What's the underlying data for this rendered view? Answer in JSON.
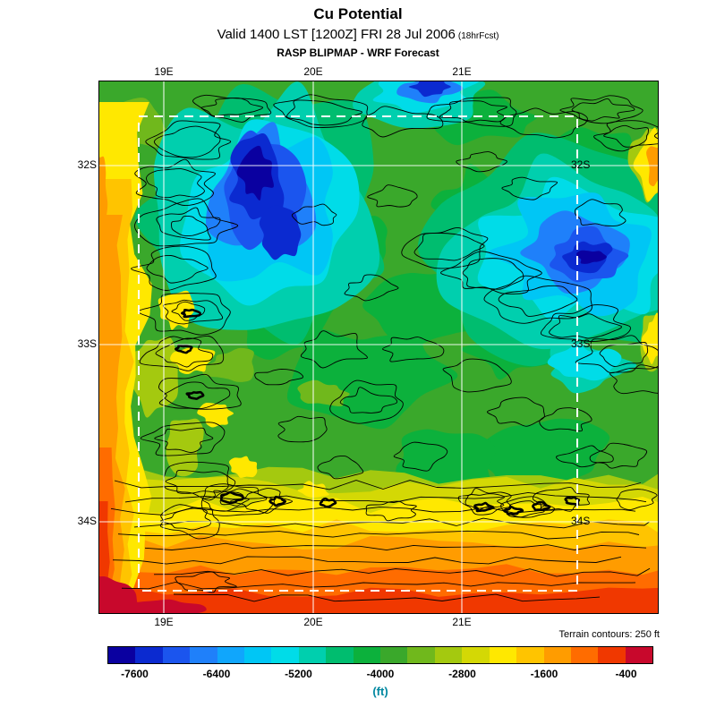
{
  "header": {
    "title": "Cu Potential",
    "valid_line": "Valid 1400 LST [1200Z] FRI 28 Jul 2006",
    "fcst_tag": "(18hrFcst)",
    "model_line": "RASP BLIPMAP - WRF Forecast"
  },
  "map": {
    "top_labels": [
      "19E",
      "20E",
      "21E"
    ],
    "bottom_labels": [
      "19E",
      "20E",
      "21E"
    ],
    "left_labels": [
      "32S",
      "33S",
      "34S"
    ],
    "right_labels": [
      "32S",
      "33S",
      "34S"
    ]
  },
  "footer": {
    "terrain_note": "Terrain contours: 250 ft",
    "units_label": "(ft)",
    "units_color": "#0087a0"
  },
  "chart_data": {
    "type": "heatmap",
    "title": "Cu Potential",
    "subtitle": "Valid 1400 LST [1200Z] FRI 28 Jul 2006 (18hrFcst)",
    "source": "RASP BLIPMAP - WRF Forecast",
    "units": "ft",
    "x_tick_labels": [
      "19E",
      "20E",
      "21E"
    ],
    "y_tick_labels": [
      "32S",
      "33S",
      "34S"
    ],
    "terrain_contour_interval": "250 ft",
    "grid": "white solid lat/lon lines, white dashed inner domain boundary",
    "colorbar": {
      "orientation": "horizontal",
      "min": -8000,
      "max": 0,
      "segment_step": 400,
      "tick_labels": [
        "-7600",
        "-6400",
        "-5200",
        "-4000",
        "-2800",
        "-1600",
        "-400"
      ],
      "colors": [
        "#0a00a0",
        "#0b2ad0",
        "#1b55ee",
        "#1f80fa",
        "#10a6fc",
        "#00c6f5",
        "#00dce8",
        "#00cfae",
        "#00bd6f",
        "#0cb13c",
        "#3aa82b",
        "#70b81c",
        "#a4c90f",
        "#d4d805",
        "#ffe800",
        "#ffc400",
        "#ff9c00",
        "#ff6c00",
        "#f03800",
        "#c8082c"
      ]
    },
    "approx_region_values_ft": {
      "upper_central_blue_minimum": -7600,
      "upper_right_blue_minimum": -7200,
      "dominant_green_interior": -4000,
      "west_edge_band": -1600,
      "south_edge_band": -1200,
      "southwest_corner_maximum": -400
    }
  }
}
